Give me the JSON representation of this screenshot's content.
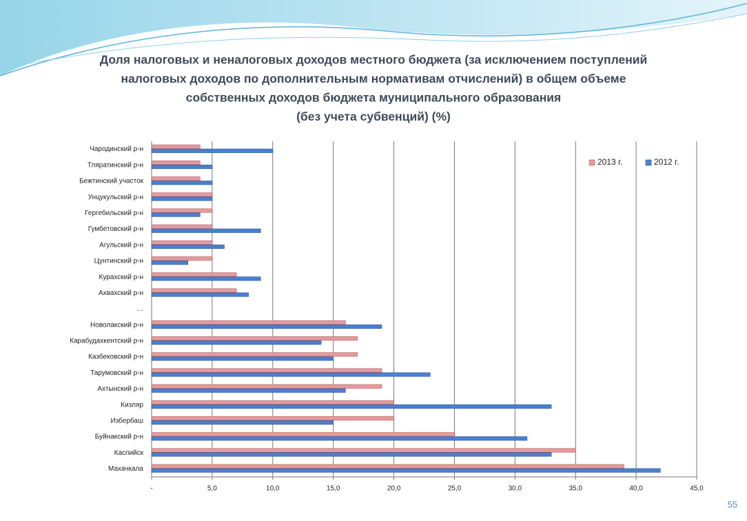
{
  "chart_data": {
    "type": "hbar",
    "title": [
      "Доля налоговых и неналоговых доходов местного бюджета (за исключением поступлений",
      "налоговых доходов по дополнительным нормативам отчислений) в общем объеме",
      "собственных доходов бюджета муниципального образования",
      "(без учета субвенций) (%)"
    ],
    "categories": [
      "Чародинский р-н",
      "Тляратинский р-н",
      "Бежтинский участок",
      "Унцукульский р-н",
      "Гергебильский р-н",
      "Гумбетовский р-н",
      "Агульский р-н",
      "Цунтинский р-н",
      "Курахский р-н",
      "Ахвахский р-н",
      "…",
      "Новолакский р-н",
      "Карабудахкентский р-н",
      "Казбековский р-н",
      "Тарумовский р-н",
      "Ахтынский р-н",
      "Кизляр",
      "Избербаш",
      "Буйнакский р-н",
      "Каспийск",
      "Махачкала"
    ],
    "series": [
      {
        "name": "2013 г.",
        "color": "#e8999b",
        "values": [
          4,
          4,
          4,
          5,
          5,
          5,
          5,
          5,
          7,
          7,
          null,
          16,
          17,
          17,
          19,
          19,
          20,
          20,
          25,
          35,
          39
        ]
      },
      {
        "name": "2012 г.",
        "color": "#4a80cc",
        "values": [
          10,
          5,
          5,
          5,
          4,
          9,
          6,
          3,
          9,
          8,
          null,
          19,
          14,
          15,
          23,
          16,
          33,
          15,
          31,
          33,
          42
        ]
      }
    ],
    "xlim": [
      0,
      45
    ],
    "xticks": [
      {
        "value": 0,
        "label": "-"
      },
      {
        "value": 5,
        "label": "5,0"
      },
      {
        "value": 10,
        "label": "10,0"
      },
      {
        "value": 15,
        "label": "15,0"
      },
      {
        "value": 20,
        "label": "20,0"
      },
      {
        "value": 25,
        "label": "25,0"
      },
      {
        "value": 30,
        "label": "30,0"
      },
      {
        "value": 35,
        "label": "35,0"
      },
      {
        "value": 40,
        "label": "40,0"
      },
      {
        "value": 45,
        "label": "45,0"
      }
    ],
    "grid": true,
    "legend": "top-right"
  },
  "slide": {
    "page_number": "55"
  }
}
